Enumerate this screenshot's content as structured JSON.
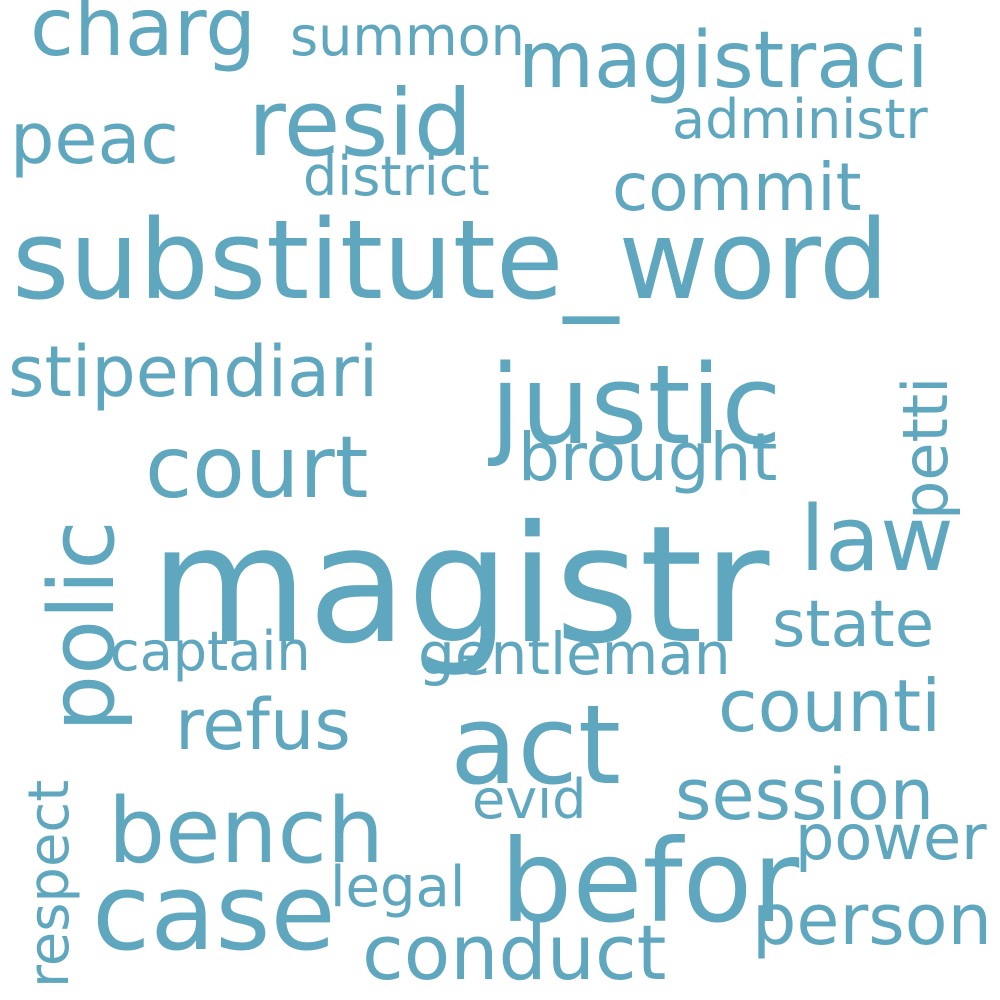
{
  "word_color": "#5fa6bf",
  "background_color": "#ffffff",
  "words": {
    "magistr": "magistr",
    "substitute_word": "substitute_word",
    "justic": "justic",
    "befor": "befor",
    "act": "act",
    "case": "case",
    "bench": "bench",
    "court": "court",
    "resid": "resid",
    "charg": "charg",
    "magistraci": "magistraci",
    "law": "law",
    "polic": "polic",
    "conduct": "conduct",
    "stipendiari": "stipendiari",
    "counti": "counti",
    "session": "session",
    "person": "person",
    "commit": "commit",
    "refus": "refus",
    "brought": "brought",
    "peac": "peac",
    "power": "power",
    "state": "state",
    "gentleman": "gentleman",
    "petti": "petti",
    "district": "district",
    "administr": "administr",
    "summon": "summon",
    "legal": "legal",
    "evid": "evid",
    "captain": "captain",
    "respect": "respect"
  }
}
